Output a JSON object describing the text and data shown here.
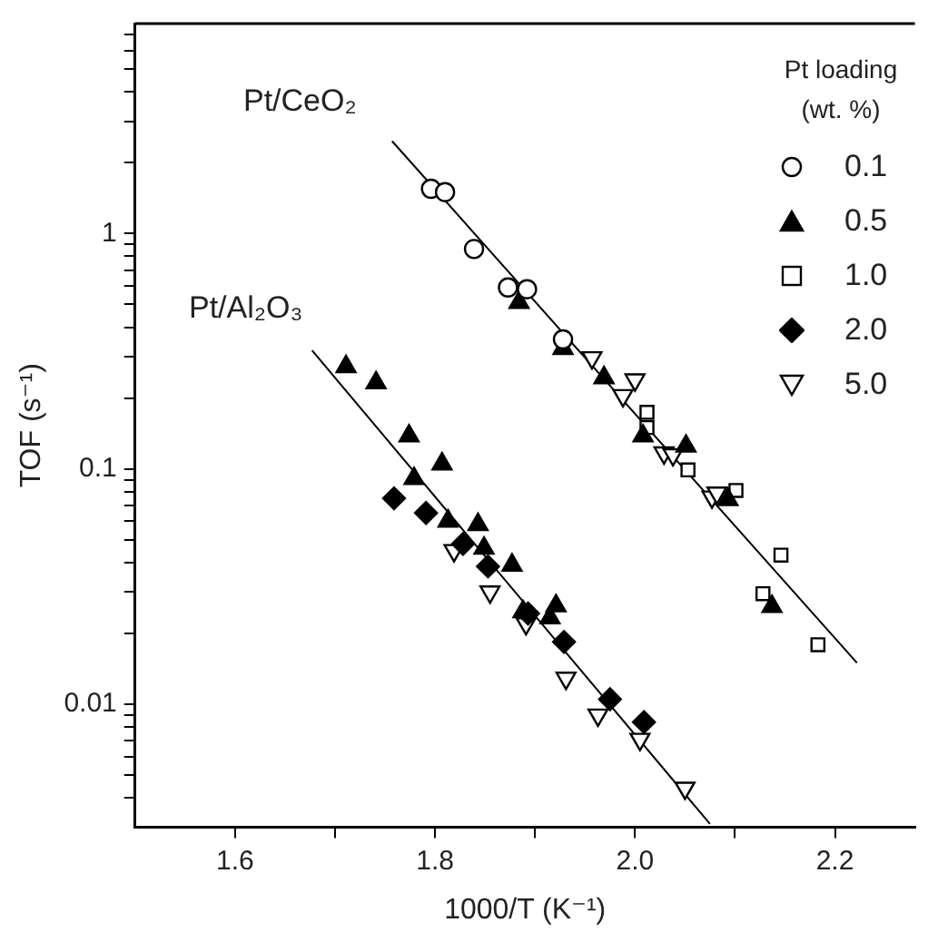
{
  "chart_data": {
    "type": "scatter",
    "xlabel": "1000/T (K⁻¹)",
    "ylabel": "TOF (s⁻¹)",
    "log": "y",
    "legend": "top right",
    "legend_title": "Pt loading (wt. %)",
    "xlim": [
      1.5,
      2.28
    ],
    "ylim": [
      0.003,
      7.8
    ],
    "xticks": [
      {
        "value": 1.6,
        "label": "1.6"
      },
      {
        "value": 1.7,
        "label": null
      },
      {
        "value": 1.8,
        "label": "1.8"
      },
      {
        "value": 1.9,
        "label": null
      },
      {
        "value": 2,
        "label": "2.0"
      },
      {
        "value": 2.1,
        "label": null
      },
      {
        "value": 2.2,
        "label": "2.2"
      }
    ],
    "yticks": [
      {
        "value": 0.004,
        "label": null
      },
      {
        "value": 0.005,
        "label": null
      },
      {
        "value": 0.006,
        "label": null
      },
      {
        "value": 0.007,
        "label": null
      },
      {
        "value": 0.008,
        "label": null
      },
      {
        "value": 0.009,
        "label": null
      },
      0.01,
      {
        "value": 0.02,
        "label": null
      },
      {
        "value": 0.03,
        "label": null
      },
      {
        "value": 0.04,
        "label": null
      },
      {
        "value": 0.05,
        "label": null
      },
      {
        "value": 0.06,
        "label": null
      },
      {
        "value": 0.07,
        "label": null
      },
      {
        "value": 0.08,
        "label": null
      },
      {
        "value": 0.09,
        "label": null
      },
      0.1,
      {
        "value": 0.2,
        "label": null
      },
      {
        "value": 0.3,
        "label": null
      },
      {
        "value": 0.4,
        "label": null
      },
      {
        "value": 0.5,
        "label": null
      },
      {
        "value": 0.6,
        "label": null
      },
      {
        "value": 0.7,
        "label": null
      },
      {
        "value": 0.8,
        "label": null
      },
      {
        "value": 0.9,
        "label": null
      },
      1,
      {
        "value": 2,
        "label": null
      },
      {
        "value": 3,
        "label": null
      },
      {
        "value": 4,
        "label": null
      },
      {
        "value": 5,
        "label": null
      },
      {
        "value": 6,
        "label": null
      },
      {
        "value": 7,
        "label": null
      }
    ],
    "annotations": [
      "Pt/CeO₂",
      "Pt/Al₂O₃"
    ],
    "series": [
      {
        "name": "0.1",
        "color": "#000000",
        "marker": "circle-open",
        "x": [
          1.796,
          1.81,
          1.839,
          1.873,
          1.892,
          1.928
        ],
        "values": [
          1.55,
          1.5,
          0.86,
          0.59,
          0.58,
          0.355
        ]
      },
      {
        "name": "0.5",
        "color": "#000000",
        "marker": "triangle",
        "x": [
          1.884,
          1.928,
          1.969,
          2.008,
          2.051,
          2.093,
          2.137,
          1.711,
          1.741,
          1.774,
          1.807,
          1.779,
          1.813,
          1.843,
          1.849,
          1.877,
          1.888,
          1.915,
          1.921
        ],
        "values": [
          0.51,
          0.325,
          0.244,
          0.138,
          0.125,
          0.074,
          0.026,
          0.272,
          0.232,
          0.138,
          0.105,
          0.091,
          0.06,
          0.058,
          0.046,
          0.039,
          0.0247,
          0.0233,
          0.0262
        ]
      },
      {
        "name": "1.0",
        "color": "#000000",
        "marker": "square-open",
        "x": [
          2.012,
          2.012,
          2.053,
          2.101,
          2.146,
          2.128,
          2.183
        ],
        "values": [
          0.174,
          0.15,
          0.099,
          0.081,
          0.043,
          0.0295,
          0.0179
        ]
      },
      {
        "name": "2.0",
        "color": "#000000",
        "marker": "diamond",
        "x": [
          1.759,
          1.791,
          1.828,
          1.853,
          1.893,
          1.929,
          1.975,
          2.009
        ],
        "values": [
          0.075,
          0.065,
          0.048,
          0.0385,
          0.0243,
          0.0184,
          0.0105,
          0.0084
        ]
      },
      {
        "name": "5.0",
        "color": "#000000",
        "marker": "triangle-down-open",
        "x": [
          1.957,
          2,
          1.988,
          2.029,
          2.038,
          2.077,
          2.082,
          1.819,
          1.855,
          1.891,
          1.931,
          1.963,
          2.005,
          2.05
        ],
        "values": [
          0.297,
          0.239,
          0.205,
          0.117,
          0.115,
          0.076,
          0.079,
          0.045,
          0.03,
          0.022,
          0.0129,
          0.009,
          0.0071,
          0.0044
        ]
      },
      {
        "type": "line",
        "color": "#000000",
        "marker": "none",
        "x": [
          1.757,
          2.222
        ],
        "values": [
          2.47,
          0.015
        ]
      },
      {
        "type": "line",
        "color": "#000000",
        "marker": "none",
        "x": [
          1.677,
          2.075
        ],
        "values": [
          0.319,
          0.0031
        ]
      }
    ]
  }
}
